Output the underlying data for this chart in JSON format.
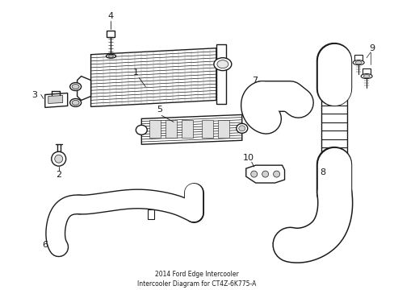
{
  "title": "2014 Ford Edge Intercooler\nIntercooler Diagram for CT4Z-6K775-A",
  "background_color": "#ffffff",
  "line_color": "#1a1a1a",
  "fig_width": 4.89,
  "fig_height": 3.6,
  "dpi": 100
}
